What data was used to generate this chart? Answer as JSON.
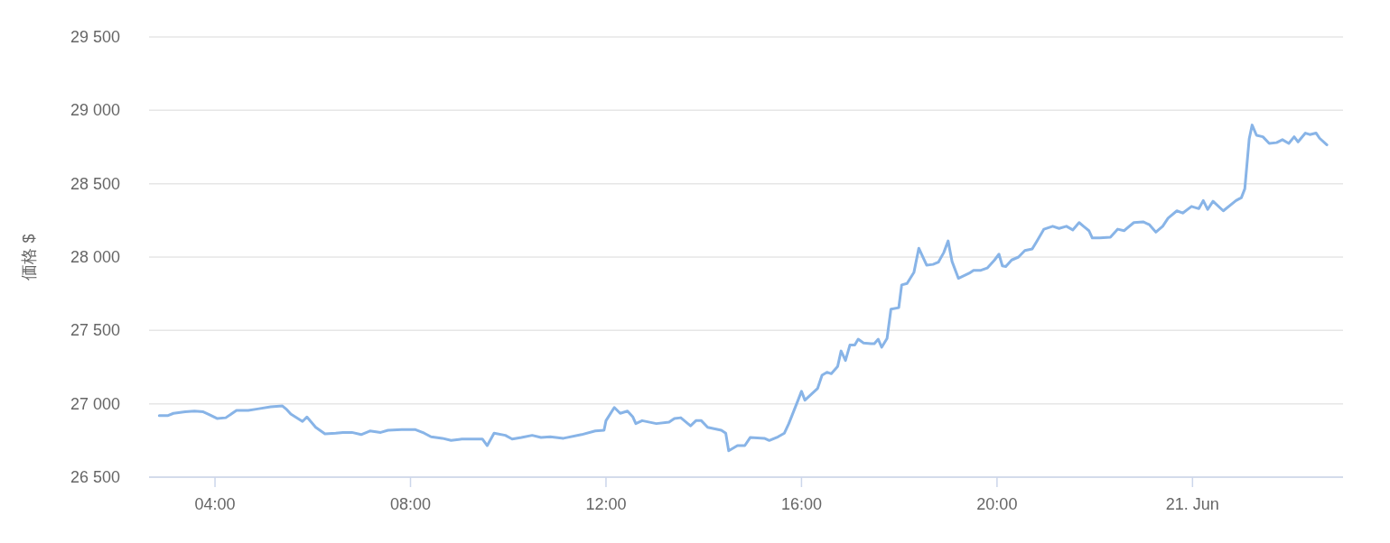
{
  "chart_data": {
    "type": "line",
    "ylabel": "価格 $",
    "color": "#88b4e7",
    "grid": "y",
    "marker": "none",
    "line_style": "solid",
    "x": [
      2.86,
      3.04,
      3.15,
      3.39,
      3.58,
      3.76,
      3.89,
      4.04,
      4.22,
      4.44,
      4.68,
      4.87,
      5.14,
      5.38,
      5.47,
      5.55,
      5.79,
      5.88,
      6.06,
      6.25,
      6.47,
      6.62,
      6.8,
      6.99,
      7.17,
      7.39,
      7.54,
      7.82,
      8.09,
      8.28,
      8.42,
      8.65,
      8.83,
      9.05,
      9.47,
      9.57,
      9.71,
      9.94,
      10.08,
      10.27,
      10.49,
      10.67,
      10.86,
      11.13,
      11.5,
      11.78,
      11.96,
      12.0,
      12.17,
      12.29,
      12.44,
      12.55,
      12.61,
      12.74,
      13.03,
      13.29,
      13.4,
      13.53,
      13.73,
      13.84,
      13.95,
      14.08,
      14.36,
      14.45,
      14.51,
      14.69,
      14.84,
      14.95,
      15.24,
      15.34,
      15.52,
      15.65,
      15.74,
      15.93,
      16.0,
      16.07,
      16.2,
      16.33,
      16.42,
      16.52,
      16.61,
      16.74,
      16.81,
      16.9,
      16.99,
      17.09,
      17.16,
      17.27,
      17.42,
      17.49,
      17.57,
      17.64,
      17.75,
      17.83,
      17.99,
      18.05,
      18.16,
      18.3,
      18.4,
      18.56,
      18.69,
      18.8,
      18.91,
      19.0,
      19.08,
      19.21,
      19.43,
      19.52,
      19.67,
      19.8,
      19.95,
      20.04,
      20.11,
      20.18,
      20.3,
      20.44,
      20.57,
      20.72,
      20.81,
      20.96,
      21.14,
      21.27,
      21.42,
      21.55,
      21.68,
      21.77,
      21.88,
      21.95,
      22.1,
      22.32,
      22.47,
      22.6,
      22.8,
      22.99,
      23.12,
      23.25,
      23.39,
      23.5,
      23.68,
      23.8,
      23.98,
      24.13,
      24.22,
      24.31,
      24.42,
      24.63,
      24.89,
      25.0,
      25.07,
      25.16,
      25.22,
      25.31,
      25.44,
      25.57,
      25.72,
      25.84,
      25.97,
      26.08,
      26.16,
      26.31,
      26.4,
      26.53,
      26.6,
      26.75
    ],
    "values": [
      26920,
      26920,
      26935,
      26945,
      26950,
      26945,
      26925,
      26900,
      26905,
      26955,
      26955,
      26965,
      26980,
      26985,
      26960,
      26930,
      26880,
      26910,
      26840,
      26795,
      26800,
      26805,
      26805,
      26790,
      26815,
      26805,
      26820,
      26825,
      26825,
      26800,
      26775,
      26765,
      26750,
      26760,
      26760,
      26715,
      26800,
      26785,
      26760,
      26770,
      26785,
      26770,
      26775,
      26765,
      26790,
      26815,
      26820,
      26885,
      26975,
      26935,
      26950,
      26910,
      26865,
      26885,
      26865,
      26875,
      26900,
      26905,
      26850,
      26885,
      26885,
      26840,
      26820,
      26800,
      26680,
      26715,
      26715,
      26770,
      26765,
      26750,
      26775,
      26800,
      26865,
      27025,
      27085,
      27025,
      27065,
      27105,
      27195,
      27215,
      27205,
      27255,
      27360,
      27295,
      27400,
      27400,
      27440,
      27415,
      27410,
      27410,
      27440,
      27385,
      27445,
      27645,
      27655,
      27810,
      27820,
      27895,
      28060,
      27945,
      27950,
      27965,
      28030,
      28110,
      27970,
      27855,
      27890,
      27910,
      27910,
      27925,
      27980,
      28020,
      27940,
      27935,
      27980,
      28000,
      28045,
      28055,
      28105,
      28190,
      28210,
      28195,
      28210,
      28185,
      28235,
      28210,
      28180,
      28130,
      28130,
      28135,
      28190,
      28180,
      28235,
      28240,
      28220,
      28170,
      28210,
      28265,
      28315,
      28300,
      28345,
      28330,
      28385,
      28325,
      28380,
      28315,
      28385,
      28405,
      28465,
      28805,
      28900,
      28830,
      28820,
      28775,
      28780,
      28800,
      28775,
      28820,
      28785,
      28845,
      28835,
      28845,
      28810,
      28765
    ],
    "xlim": [
      2.65,
      27.08
    ],
    "ylim": [
      26500,
      29500
    ],
    "xticks": [
      {
        "value": 4,
        "label": "04:00"
      },
      {
        "value": 8,
        "label": "08:00"
      },
      {
        "value": 12,
        "label": "12:00"
      },
      {
        "value": 16,
        "label": "16:00"
      },
      {
        "value": 20,
        "label": "20:00"
      },
      {
        "value": 24,
        "label": "21. Jun"
      }
    ],
    "yticks": [
      {
        "value": 26500,
        "label": "26 500"
      },
      {
        "value": 27000,
        "label": "27 000"
      },
      {
        "value": 27500,
        "label": "27 500"
      },
      {
        "value": 28000,
        "label": "28 000"
      },
      {
        "value": 28500,
        "label": "28 500"
      },
      {
        "value": 29000,
        "label": "29 000"
      },
      {
        "value": 29500,
        "label": "29 500"
      }
    ]
  }
}
